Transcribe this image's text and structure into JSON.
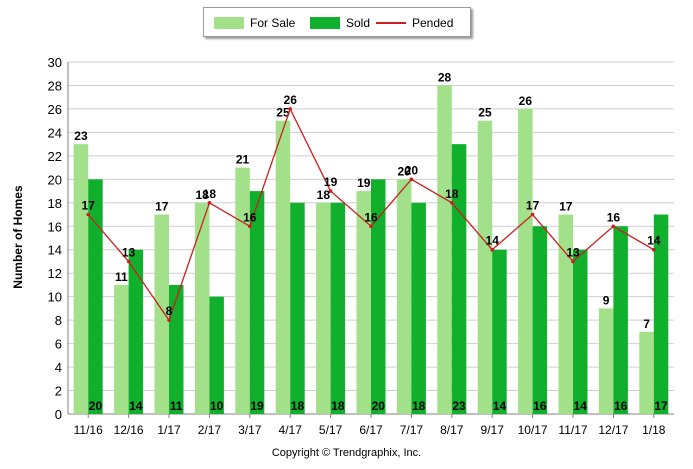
{
  "chart_data": {
    "type": "bar",
    "categories": [
      "11/16",
      "12/16",
      "1/17",
      "2/17",
      "3/17",
      "4/17",
      "5/17",
      "6/17",
      "7/17",
      "8/17",
      "9/17",
      "10/17",
      "11/17",
      "12/17",
      "1/18"
    ],
    "series": [
      {
        "name": "For Sale",
        "kind": "bar",
        "color": "#a3e08a",
        "values": [
          23,
          11,
          17,
          18,
          21,
          25,
          18,
          19,
          20,
          28,
          25,
          26,
          17,
          9,
          7
        ]
      },
      {
        "name": "Sold",
        "kind": "bar",
        "color": "#10b02c",
        "values": [
          20,
          14,
          11,
          10,
          19,
          18,
          18,
          20,
          18,
          23,
          14,
          16,
          14,
          16,
          17
        ]
      },
      {
        "name": "Pended",
        "kind": "line",
        "color": "#c82020",
        "values": [
          17,
          13,
          8,
          18,
          16,
          26,
          19,
          16,
          20,
          18,
          14,
          17,
          13,
          16,
          14
        ]
      }
    ],
    "ylabel": "Number of Homes",
    "xlabel": "",
    "ylim": [
      0,
      30
    ],
    "yticks": [
      0,
      2,
      4,
      6,
      8,
      10,
      12,
      14,
      16,
      18,
      20,
      22,
      24,
      26,
      28,
      30
    ],
    "grid": true,
    "legend_position": "top-center"
  },
  "copyright": "Copyright © Trendgraphix, Inc."
}
